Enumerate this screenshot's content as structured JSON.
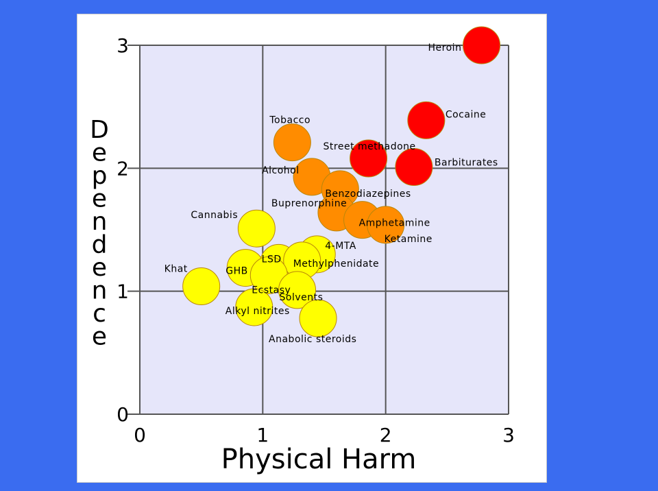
{
  "chart_data": {
    "type": "scatter",
    "title": "",
    "xlabel": "Physical Harm",
    "ylabel": "Dependence",
    "xlim": [
      0,
      3
    ],
    "ylim": [
      0,
      3
    ],
    "xticks": [
      "0",
      "1",
      "2",
      "3"
    ],
    "yticks": [
      "0",
      "1",
      "2",
      "3"
    ],
    "grid": true,
    "colors": {
      "plot_background": "#e6e6fa",
      "grid": "#555555",
      "high": "#ff0000",
      "medium": "#ff8c00",
      "low": "#ffff00",
      "outline": "#b8860b",
      "background": "#3a6cf0"
    },
    "points": [
      {
        "label": "Heroin",
        "x": 2.78,
        "y": 3.0,
        "tier": "high"
      },
      {
        "label": "Cocaine",
        "x": 2.33,
        "y": 2.39,
        "tier": "high"
      },
      {
        "label": "Street methadone",
        "x": 1.86,
        "y": 2.08,
        "tier": "high"
      },
      {
        "label": "Barbiturates",
        "x": 2.23,
        "y": 2.01,
        "tier": "high"
      },
      {
        "label": "Tobacco",
        "x": 1.24,
        "y": 2.21,
        "tier": "medium"
      },
      {
        "label": "Alcohol",
        "x": 1.4,
        "y": 1.93,
        "tier": "medium"
      },
      {
        "label": "Benzodiazepines",
        "x": 1.63,
        "y": 1.83,
        "tier": "medium"
      },
      {
        "label": "Buprenorphine",
        "x": 1.6,
        "y": 1.64,
        "tier": "medium"
      },
      {
        "label": "Amphetamine",
        "x": 1.81,
        "y": 1.58,
        "tier": "medium"
      },
      {
        "label": "Ketamine",
        "x": 2.0,
        "y": 1.54,
        "tier": "medium"
      },
      {
        "label": "Cannabis",
        "x": 0.95,
        "y": 1.51,
        "tier": "low"
      },
      {
        "label": "4-MTA",
        "x": 1.44,
        "y": 1.3,
        "tier": "low"
      },
      {
        "label": "LSD",
        "x": 1.13,
        "y": 1.23,
        "tier": "low"
      },
      {
        "label": "Methylphenidate",
        "x": 1.32,
        "y": 1.25,
        "tier": "low"
      },
      {
        "label": "GHB",
        "x": 0.86,
        "y": 1.19,
        "tier": "low"
      },
      {
        "label": "Ecstasy",
        "x": 1.05,
        "y": 1.13,
        "tier": "low"
      },
      {
        "label": "Khat",
        "x": 0.5,
        "y": 1.04,
        "tier": "low"
      },
      {
        "label": "Solvents",
        "x": 1.28,
        "y": 1.01,
        "tier": "low"
      },
      {
        "label": "Alkyl nitrites",
        "x": 0.93,
        "y": 0.87,
        "tier": "low"
      },
      {
        "label": "Anabolic steroids",
        "x": 1.45,
        "y": 0.78,
        "tier": "low"
      }
    ]
  }
}
